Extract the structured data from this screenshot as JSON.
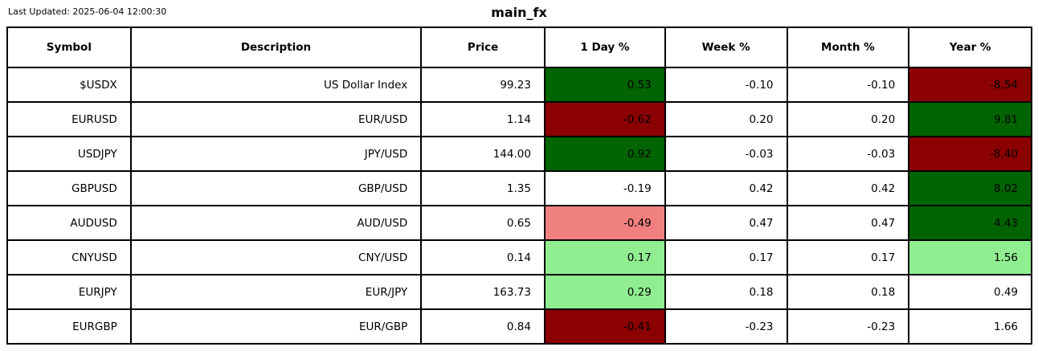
{
  "header": {
    "last_updated": "Last Updated: 2025-06-04 12:00:30",
    "title": "main_fx"
  },
  "chart_data": {
    "type": "table",
    "title": "main_fx",
    "last_updated": "2025-06-04 12:00:30",
    "columns": [
      "Symbol",
      "Description",
      "Price",
      "1 Day %",
      "Week %",
      "Month %",
      "Year %"
    ],
    "palette": {
      "strong_positive": "#006400",
      "strong_negative": "#8b0000",
      "mild_positive": "#90ee90",
      "mild_negative": "#f08080",
      "neutral": "#ffffff"
    },
    "rows": [
      {
        "symbol": "$USDX",
        "description": "US Dollar Index",
        "price": "99.23",
        "day_pct": {
          "value": "0.53",
          "bg": "#006400"
        },
        "week_pct": {
          "value": "-0.10",
          "bg": "#ffffff"
        },
        "month_pct": {
          "value": "-0.10",
          "bg": "#ffffff"
        },
        "year_pct": {
          "value": "-8.54",
          "bg": "#8b0000"
        }
      },
      {
        "symbol": "EURUSD",
        "description": "EUR/USD",
        "price": "1.14",
        "day_pct": {
          "value": "-0.62",
          "bg": "#8b0000"
        },
        "week_pct": {
          "value": "0.20",
          "bg": "#ffffff"
        },
        "month_pct": {
          "value": "0.20",
          "bg": "#ffffff"
        },
        "year_pct": {
          "value": "9.81",
          "bg": "#006400"
        }
      },
      {
        "symbol": "USDJPY",
        "description": "JPY/USD",
        "price": "144.00",
        "day_pct": {
          "value": "0.92",
          "bg": "#006400"
        },
        "week_pct": {
          "value": "-0.03",
          "bg": "#ffffff"
        },
        "month_pct": {
          "value": "-0.03",
          "bg": "#ffffff"
        },
        "year_pct": {
          "value": "-8.40",
          "bg": "#8b0000"
        }
      },
      {
        "symbol": "GBPUSD",
        "description": "GBP/USD",
        "price": "1.35",
        "day_pct": {
          "value": "-0.19",
          "bg": "#ffffff"
        },
        "week_pct": {
          "value": "0.42",
          "bg": "#ffffff"
        },
        "month_pct": {
          "value": "0.42",
          "bg": "#ffffff"
        },
        "year_pct": {
          "value": "8.02",
          "bg": "#006400"
        }
      },
      {
        "symbol": "AUDUSD",
        "description": "AUD/USD",
        "price": "0.65",
        "day_pct": {
          "value": "-0.49",
          "bg": "#f08080"
        },
        "week_pct": {
          "value": "0.47",
          "bg": "#ffffff"
        },
        "month_pct": {
          "value": "0.47",
          "bg": "#ffffff"
        },
        "year_pct": {
          "value": "4.43",
          "bg": "#006400"
        }
      },
      {
        "symbol": "CNYUSD",
        "description": "CNY/USD",
        "price": "0.14",
        "day_pct": {
          "value": "0.17",
          "bg": "#90ee90"
        },
        "week_pct": {
          "value": "0.17",
          "bg": "#ffffff"
        },
        "month_pct": {
          "value": "0.17",
          "bg": "#ffffff"
        },
        "year_pct": {
          "value": "1.56",
          "bg": "#90ee90"
        }
      },
      {
        "symbol": "EURJPY",
        "description": "EUR/JPY",
        "price": "163.73",
        "day_pct": {
          "value": "0.29",
          "bg": "#90ee90"
        },
        "week_pct": {
          "value": "0.18",
          "bg": "#ffffff"
        },
        "month_pct": {
          "value": "0.18",
          "bg": "#ffffff"
        },
        "year_pct": {
          "value": "0.49",
          "bg": "#ffffff"
        }
      },
      {
        "symbol": "EURGBP",
        "description": "EUR/GBP",
        "price": "0.84",
        "day_pct": {
          "value": "-0.41",
          "bg": "#8b0000"
        },
        "week_pct": {
          "value": "-0.23",
          "bg": "#ffffff"
        },
        "month_pct": {
          "value": "-0.23",
          "bg": "#ffffff"
        },
        "year_pct": {
          "value": "1.66",
          "bg": "#ffffff"
        }
      }
    ]
  }
}
